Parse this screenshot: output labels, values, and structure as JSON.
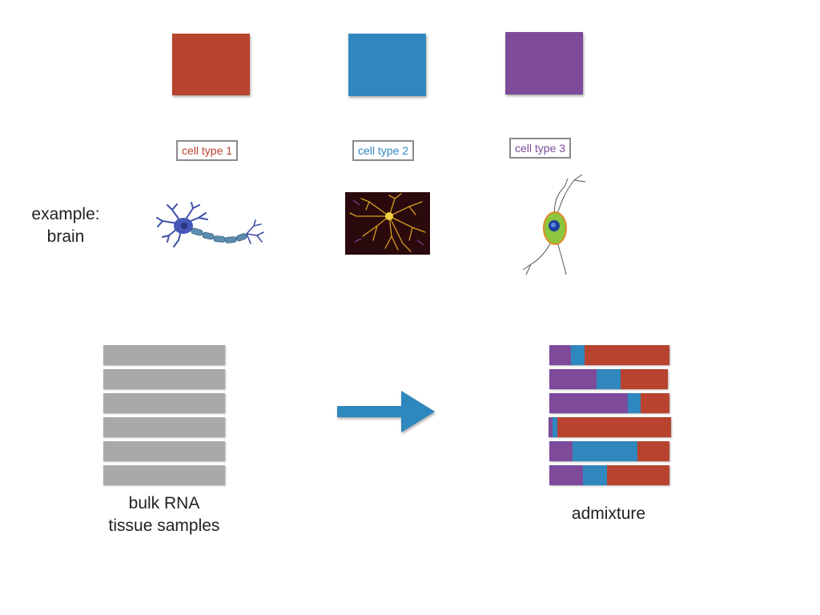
{
  "colors": {
    "red": "#b8432e",
    "blue": "#2f87bd",
    "purple": "#7d4b9a",
    "gray": "#a8aaa8"
  },
  "cell_types": [
    {
      "label": "cell type 1",
      "color": "#b8432e",
      "image": "neuron-icon"
    },
    {
      "label": "cell type 2",
      "color": "#2f87bd",
      "image": "astrocyte-icon"
    },
    {
      "label": "cell type 3",
      "color": "#7d4b9a",
      "image": "bipolar-cell-icon"
    }
  ],
  "example_label": {
    "line1": "example:",
    "line2": "brain"
  },
  "bulk": {
    "line1": "bulk RNA",
    "line2": "tissue samples",
    "sample_count": 6
  },
  "admixture": {
    "label": "admixture",
    "rows": [
      {
        "purple": 0.18,
        "blue": 0.11,
        "red": 0.71
      },
      {
        "purple": 0.4,
        "blue": 0.2,
        "red": 0.4
      },
      {
        "purple": 0.65,
        "blue": 0.11,
        "red": 0.24
      },
      {
        "purple": 0.03,
        "blue": 0.04,
        "red": 0.93
      },
      {
        "purple": 0.19,
        "blue": 0.54,
        "red": 0.27
      },
      {
        "purple": 0.28,
        "blue": 0.2,
        "red": 0.52
      }
    ]
  },
  "arrow": {
    "icon": "right-arrow-icon",
    "color": "#2f87bd"
  }
}
